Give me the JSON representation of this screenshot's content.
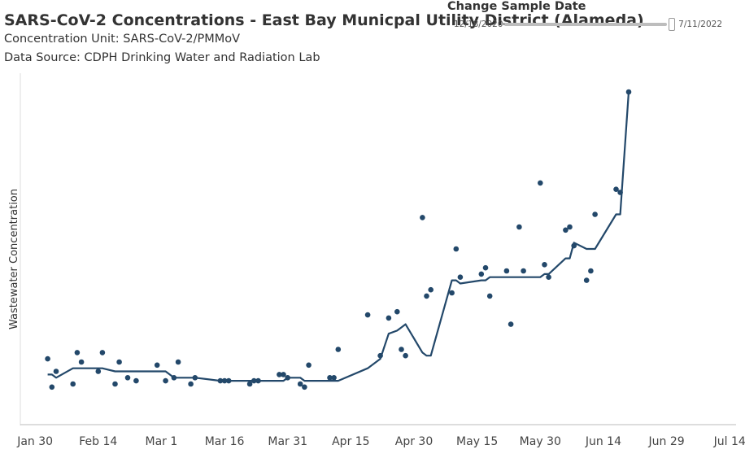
{
  "chart_data": {
    "type": "scatter",
    "title": "SARS-CoV-2 Concentrations - East Bay Municpal Utility District (Alameda)",
    "subtitle_lines": [
      "Concentration Unit:  SARS-CoV-2/PMMoV",
      "Data Source: CDPH Drinking Water and Radiation Lab"
    ],
    "ylabel": "Wastewater Concentration",
    "xlabel": "",
    "x_ticks": [
      "Jan 30",
      "Feb 14",
      "Mar 1",
      "Mar 16",
      "Mar 31",
      "Apr 15",
      "Apr 30",
      "May 15",
      "May 30",
      "Jun 14",
      "Jun 29",
      "Jul 14"
    ],
    "x_tick_days": [
      0,
      15,
      30,
      45,
      60,
      75,
      90,
      105,
      120,
      135,
      150,
      165
    ],
    "xlim": [
      -3.5,
      166.5
    ],
    "ylim": [
      0,
      100
    ],
    "color": "#23486a",
    "series": [
      {
        "name": "Samples",
        "kind": "points",
        "x": [
          3,
          4,
          5,
          9,
          10,
          11,
          15,
          16,
          19,
          20,
          22,
          24,
          29,
          31,
          33,
          34,
          37,
          38,
          44,
          45,
          46,
          51,
          52,
          53,
          58,
          59,
          60,
          63,
          64,
          65,
          70,
          71,
          72,
          79,
          82,
          84,
          86,
          87,
          88,
          92,
          93,
          94,
          99,
          100,
          101,
          106,
          107,
          108,
          112,
          113,
          115,
          116,
          120,
          121,
          122,
          126,
          127,
          128,
          131,
          132,
          133,
          138,
          139,
          141
        ],
        "y": [
          15,
          6,
          11,
          7,
          17,
          14,
          11,
          17,
          7,
          14,
          9,
          8,
          13,
          8,
          9,
          14,
          7,
          9,
          8,
          8,
          8,
          7,
          8,
          8,
          10,
          10,
          9,
          7,
          6,
          13,
          9,
          9,
          18,
          29,
          16,
          28,
          30,
          18,
          16,
          60,
          35,
          37,
          36,
          50,
          41,
          42,
          44,
          35,
          43,
          26,
          57,
          43,
          71,
          45,
          41,
          56,
          57,
          51,
          40,
          43,
          61,
          69,
          68,
          100
        ]
      },
      {
        "name": "Moving average",
        "kind": "line",
        "x": [
          3,
          4,
          5,
          9,
          10,
          11,
          15,
          16,
          19,
          20,
          22,
          24,
          29,
          31,
          33,
          34,
          37,
          38,
          44,
          45,
          46,
          51,
          52,
          53,
          58,
          59,
          60,
          63,
          64,
          65,
          70,
          71,
          72,
          79,
          82,
          84,
          86,
          87,
          88,
          92,
          93,
          94,
          99,
          100,
          101,
          106,
          107,
          108,
          112,
          113,
          115,
          116,
          120,
          121,
          122,
          126,
          127,
          128,
          131,
          132,
          133,
          138,
          139,
          141
        ],
        "y": [
          10,
          10,
          9,
          12,
          12,
          12,
          12,
          12,
          11,
          11,
          11,
          11,
          11,
          11,
          9,
          9,
          9,
          9,
          8,
          8,
          8,
          8,
          8,
          8,
          8,
          8,
          9,
          9,
          8,
          8,
          8,
          8,
          8,
          12,
          15,
          23,
          24,
          25,
          26,
          17,
          16,
          16,
          40,
          40,
          39,
          40,
          40,
          41,
          41,
          41,
          41,
          41,
          41,
          42,
          42,
          47,
          47,
          52,
          50,
          50,
          50,
          61,
          61,
          100
        ]
      }
    ]
  },
  "filter": {
    "title": "Change Sample Date",
    "start_date": "12/18/2020",
    "end_date": "7/11/2022"
  }
}
